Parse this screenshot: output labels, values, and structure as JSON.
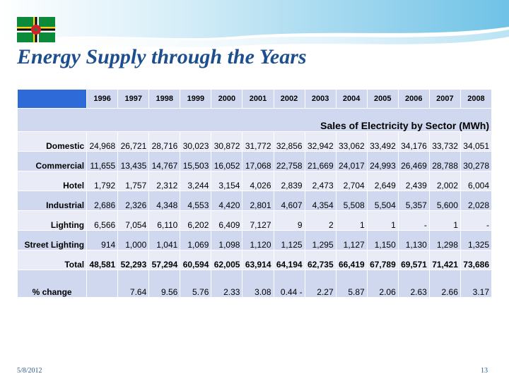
{
  "slide": {
    "title": "Energy Supply through the Years",
    "footer_date": "5/8/2012",
    "page_number": "13"
  },
  "table": {
    "years": [
      "1996",
      "1997",
      "1998",
      "1999",
      "2000",
      "2001",
      "2002",
      "2003",
      "2004",
      "2005",
      "2006",
      "2007",
      "2008"
    ],
    "section_title": "Sales of Electricity by Sector (MWh)",
    "rows": [
      {
        "label": "Domestic",
        "values": [
          "24,968",
          "26,721",
          "28,716",
          "30,023",
          "30,872",
          "31,772",
          "32,856",
          "32,942",
          "33,062",
          "33,492",
          "34,176",
          "33,732",
          "34,051"
        ]
      },
      {
        "label": "Commercial",
        "values": [
          "11,655",
          "13,435",
          "14,767",
          "15,503",
          "16,052",
          "17,068",
          "22,758",
          "21,669",
          "24,017",
          "24,993",
          "26,469",
          "28,788",
          "30,278"
        ]
      },
      {
        "label": "Hotel",
        "values": [
          "1,792",
          "1,757",
          "2,312",
          "3,244",
          "3,154",
          "4,026",
          "2,839",
          "2,473",
          "2,704",
          "2,649",
          "2,439",
          "2,002",
          "6,004"
        ]
      },
      {
        "label": "Industrial",
        "values": [
          "2,686",
          "2,326",
          "4,348",
          "4,553",
          "4,420",
          "2,801",
          "4,607",
          "4,354",
          "5,508",
          "5,504",
          "5,357",
          "5,600",
          "2,028"
        ]
      },
      {
        "label": "Lighting",
        "values": [
          "6,566",
          "7,054",
          "6,110",
          "6,202",
          "6,409",
          "7,127",
          "9",
          "2",
          "1",
          "1",
          "-",
          "1",
          "-"
        ]
      },
      {
        "label": "Street Lighting",
        "values": [
          "914",
          "1,000",
          "1,041",
          "1,069",
          "1,098",
          "1,120",
          "1,125",
          "1,295",
          "1,127",
          "1,150",
          "1,130",
          "1,298",
          "1,325"
        ]
      },
      {
        "label": "Total",
        "values": [
          "48,581",
          "52,293",
          "57,294",
          "60,594",
          "62,005",
          "63,914",
          "64,194",
          "62,735",
          "66,419",
          "67,789",
          "69,571",
          "71,421",
          "73,686"
        ]
      },
      {
        "label": "% change",
        "values": [
          "",
          "7.64",
          "9.56",
          "5.76",
          "2.33",
          "3.08",
          "0.44 -",
          "2.27",
          "5.87",
          "2.06",
          "2.63",
          "2.66",
          "3.17"
        ]
      }
    ]
  },
  "colors": {
    "title": "#1d4f8f",
    "header_bar": "#2e6bd8",
    "row_light": "#e9ecf6",
    "row_dark": "#cfd8ee",
    "wave": "#8fd0ea"
  },
  "icons": {
    "flag": "dominica-flag-icon"
  }
}
